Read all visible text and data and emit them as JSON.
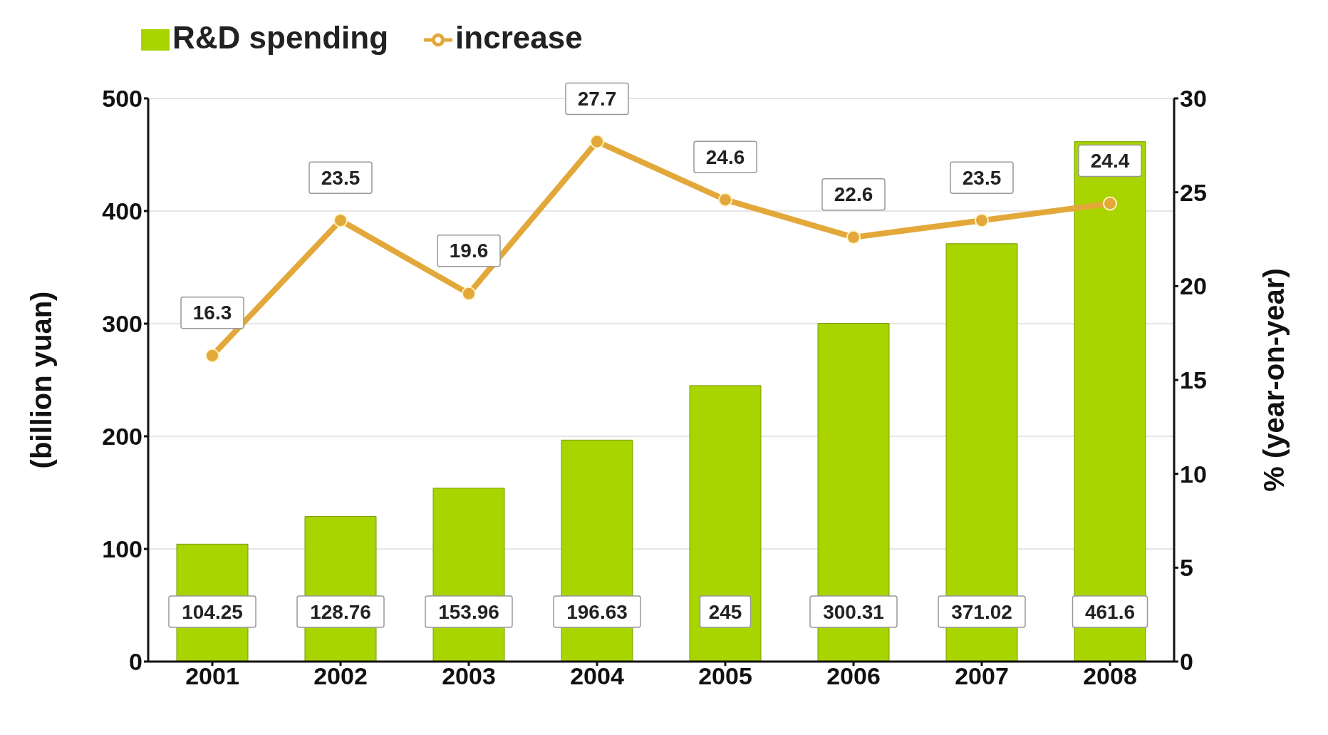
{
  "chart_data": {
    "type": "bar",
    "categories": [
      "2001",
      "2002",
      "2003",
      "2004",
      "2005",
      "2006",
      "2007",
      "2008"
    ],
    "series": [
      {
        "name": "R&D spending",
        "color": "#a8d400",
        "values": [
          104.25,
          128.76,
          153.96,
          196.63,
          245,
          300.31,
          371.02,
          461.6
        ]
      },
      {
        "name": "increase",
        "type": "line",
        "axis": "y2",
        "color": "#e3a83a",
        "values": [
          16.3,
          23.5,
          19.6,
          27.7,
          24.6,
          22.6,
          23.5,
          24.4
        ]
      }
    ],
    "ylabel": "(billion yuan)",
    "y2label": "% (year-on-year)",
    "ylim": [
      0,
      500
    ],
    "yticks": [
      0,
      100,
      200,
      300,
      400,
      500
    ],
    "y2lim": [
      0,
      30
    ],
    "y2ticks": [
      0,
      5,
      10,
      15,
      20,
      25,
      30
    ],
    "grid": "y",
    "legend": "top left",
    "marker": "circle",
    "data_labels": true
  }
}
